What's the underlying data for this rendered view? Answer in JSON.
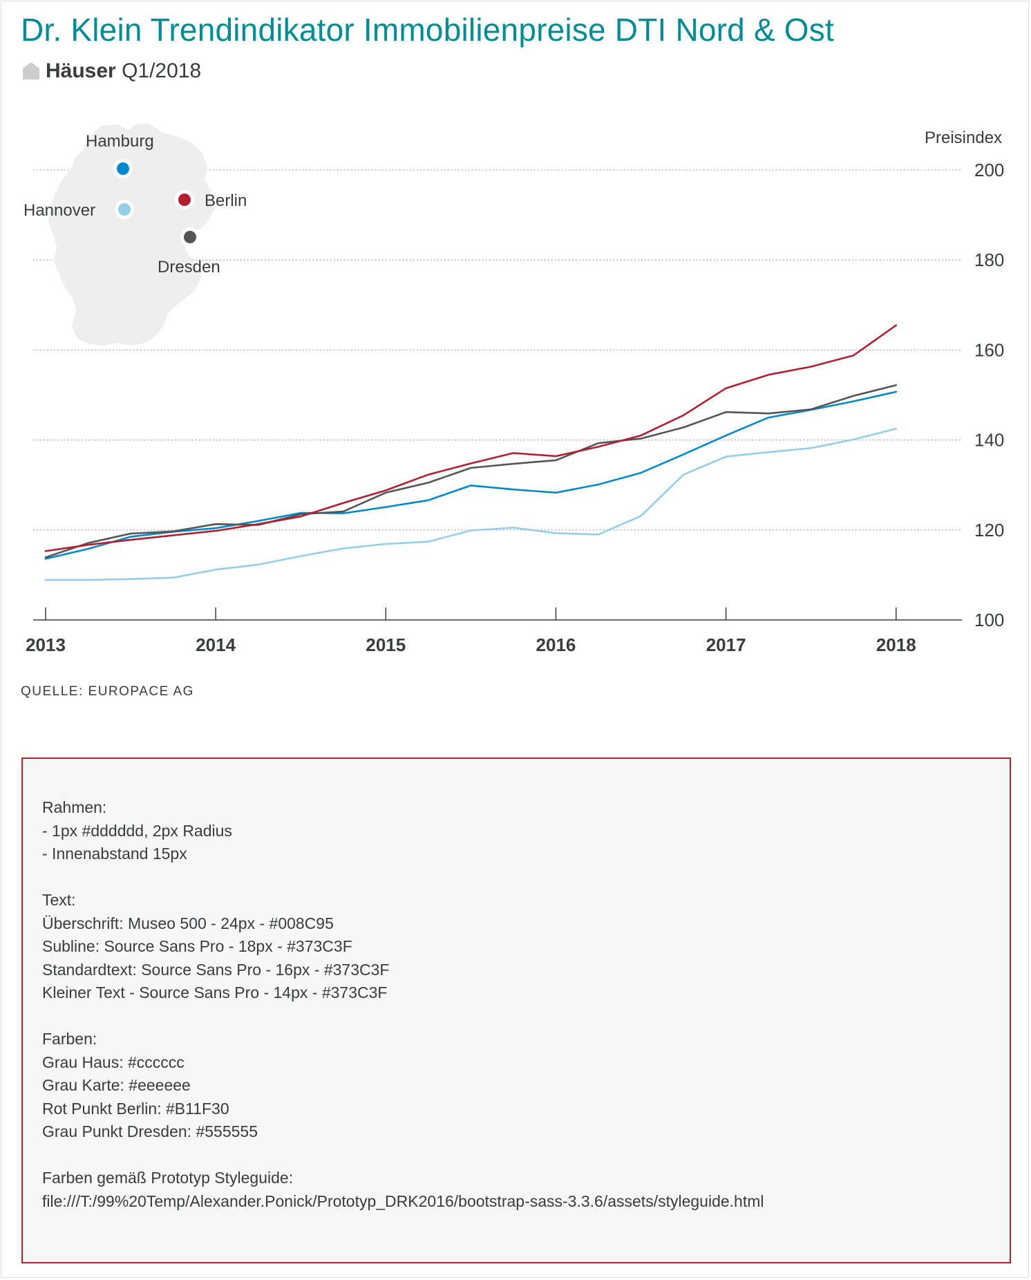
{
  "header": {
    "title": "Dr. Klein Trendindikator Immobilienpreise DTI Nord & Ost",
    "subline_bold": "Häuser",
    "subline_rest": "Q1/2018",
    "house_color": "#cccccc"
  },
  "map": {
    "fill": "#eeeeee",
    "cities": [
      {
        "name": "Hamburg",
        "color": "#0089CF"
      },
      {
        "name": "Hannover",
        "color": "#93CFEA"
      },
      {
        "name": "Berlin",
        "color": "#B11F30"
      },
      {
        "name": "Dresden",
        "color": "#555555"
      }
    ]
  },
  "chart_data": {
    "type": "line",
    "ylabel": "Preisindex",
    "ylim": [
      100,
      200
    ],
    "yticks": [
      100,
      120,
      140,
      160,
      180,
      200
    ],
    "xlim": [
      2013,
      2018.2
    ],
    "xticks": [
      "2013",
      "2014",
      "2015",
      "2016",
      "2017",
      "2018"
    ],
    "grid": true,
    "x": [
      2013.0,
      2013.25,
      2013.5,
      2013.75,
      2014.0,
      2014.25,
      2014.5,
      2014.75,
      2015.0,
      2015.25,
      2015.5,
      2015.75,
      2016.0,
      2016.25,
      2016.5,
      2016.75,
      2017.0,
      2017.25,
      2017.5,
      2017.75,
      2018.0
    ],
    "series": [
      {
        "name": "Berlin",
        "color": "#B11F30",
        "values": [
          115.3,
          116.7,
          117.8,
          118.8,
          119.8,
          121.3,
          123.0,
          126.0,
          128.8,
          132.3,
          134.8,
          137.1,
          136.4,
          138.5,
          141.0,
          145.5,
          151.5,
          154.5,
          156.3,
          158.8,
          165.5
        ]
      },
      {
        "name": "Dresden",
        "color": "#555555",
        "values": [
          113.9,
          117.1,
          119.2,
          119.7,
          121.3,
          121.1,
          123.5,
          124.1,
          128.3,
          130.5,
          133.8,
          134.7,
          135.5,
          139.3,
          140.3,
          142.8,
          146.2,
          145.9,
          146.8,
          149.8,
          152.2
        ]
      },
      {
        "name": "Hamburg",
        "color": "#0089CF",
        "values": [
          113.6,
          115.8,
          118.5,
          119.6,
          120.4,
          122.0,
          123.8,
          123.7,
          125.1,
          126.6,
          129.9,
          129.0,
          128.3,
          130.1,
          132.7,
          136.8,
          141.0,
          145.0,
          146.7,
          148.6,
          150.7
        ]
      },
      {
        "name": "Hannover",
        "color": "#93CFEA",
        "values": [
          108.9,
          108.9,
          109.1,
          109.4,
          111.2,
          112.3,
          114.2,
          115.9,
          116.9,
          117.4,
          119.9,
          120.5,
          119.3,
          119.0,
          123.1,
          132.3,
          136.3,
          137.3,
          138.2,
          140.1,
          142.5
        ]
      }
    ]
  },
  "source": "QUELLE: EUROPACE AG",
  "notes": {
    "border_color": "#B11F30",
    "lines": [
      "Rahmen:",
      "- 1px #dddddd, 2px Radius",
      "- Innenabstand 15px",
      "",
      "Text:",
      "Überschrift: Museo 500 - 24px - #008C95",
      "Subline: Source Sans Pro - 18px - #373C3F",
      "Standardtext: Source Sans Pro - 16px - #373C3F",
      "Kleiner Text - Source Sans Pro - 14px - #373C3F",
      "",
      "Farben:",
      "Grau Haus: #cccccc",
      "Grau Karte: #eeeeee",
      "Rot Punkt Berlin: #B11F30",
      "Grau Punkt Dresden: #555555",
      "",
      "Farben gemäß Prototyp Styleguide:",
      "file:///T:/99%20Temp/Alexander.Ponick/Prototyp_DRK2016/bootstrap-sass-3.3.6/assets/styleguide.html"
    ]
  }
}
